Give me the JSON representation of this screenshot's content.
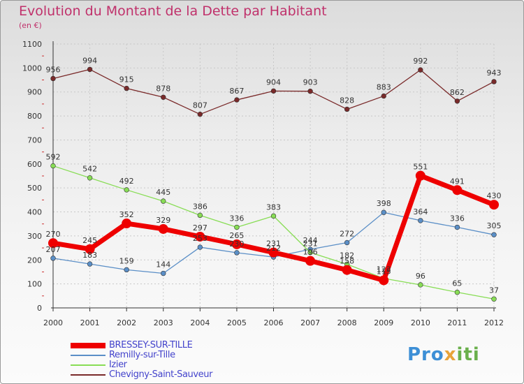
{
  "header": {
    "title": "Evolution du Montant de la Dette par Habitant",
    "unit": "(en €)"
  },
  "logo": {
    "part1": "Pro",
    "part2": "x",
    "part3": "iti"
  },
  "colors": {
    "title": "#c0316b",
    "legend_text": "#4444cc",
    "axis": "#333333",
    "grid": "#c8c8c8"
  },
  "chart_data": {
    "type": "line",
    "title": "Evolution du Montant de la Dette par Habitant",
    "subtitle": "(en €)",
    "xlabel": "",
    "ylabel": "",
    "x": [
      2000,
      2001,
      2002,
      2003,
      2004,
      2005,
      2006,
      2007,
      2008,
      2009,
      2010,
      2011,
      2012
    ],
    "ylim": [
      0,
      1100
    ],
    "yticks": [
      0,
      100,
      200,
      300,
      400,
      500,
      600,
      700,
      800,
      900,
      1000,
      1100
    ],
    "grid": true,
    "legend_position": "bottom-left",
    "series": [
      {
        "name": "BRESSEY-SUR-TILLE",
        "color": "#ee0000",
        "emphasis": true,
        "values": [
          270,
          245,
          352,
          329,
          297,
          265,
          231,
          196,
          158,
          115,
          551,
          491,
          430
        ]
      },
      {
        "name": "Remilly-sur-Tille",
        "color": "#5b8fc7",
        "values": [
          207,
          183,
          159,
          144,
          253,
          230,
          212,
          244,
          272,
          398,
          364,
          336,
          305
        ]
      },
      {
        "name": "Izier",
        "color": "#88dd55",
        "values": [
          592,
          542,
          492,
          445,
          386,
          336,
          383,
          231,
          182,
          123,
          96,
          65,
          37
        ]
      },
      {
        "name": "Chevigny-Saint-Sauveur",
        "color": "#7a2a2a",
        "values": [
          956,
          994,
          915,
          878,
          807,
          867,
          904,
          903,
          828,
          883,
          992,
          862,
          943
        ]
      }
    ]
  }
}
